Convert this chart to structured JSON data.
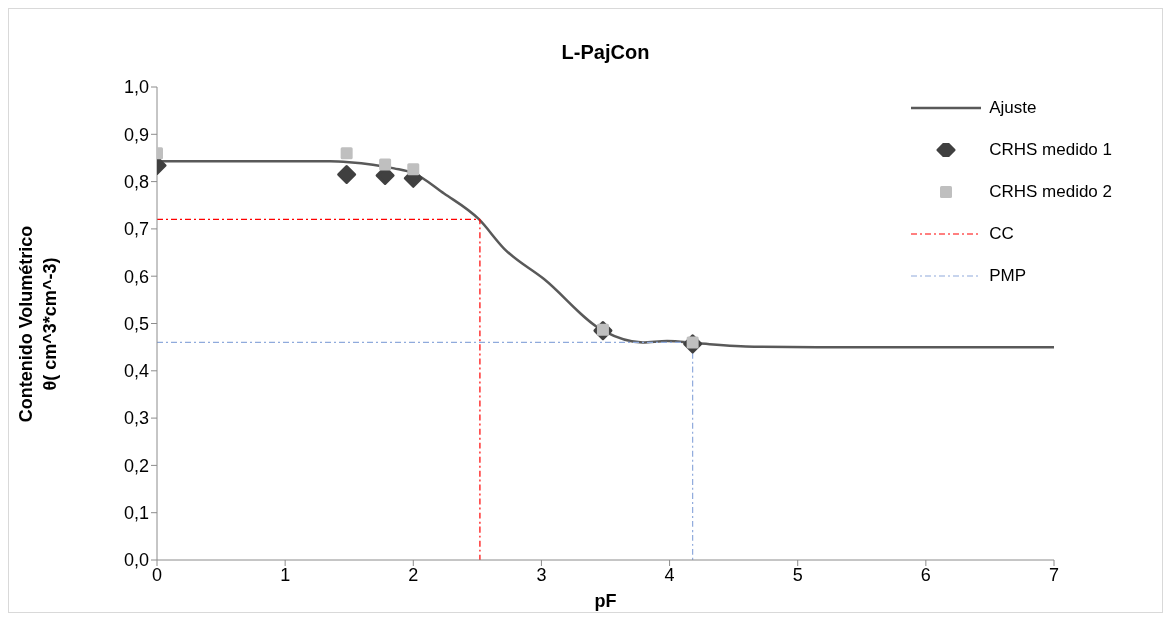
{
  "chart_data": {
    "type": "line",
    "title": "L-PajCon",
    "xlabel": "pF",
    "ylabel": "Contenido Volumétrico\nθ( cm^3*cm^-3)",
    "xlim": [
      0,
      7
    ],
    "xticks": [
      0,
      1,
      2,
      3,
      4,
      5,
      6,
      7
    ],
    "ylim": [
      0,
      1
    ],
    "yticks": [
      {
        "value": 0,
        "label": "0,0"
      },
      {
        "value": 0.1,
        "label": "0,1"
      },
      {
        "value": 0.2,
        "label": "0,2"
      },
      {
        "value": 0.3,
        "label": "0,3"
      },
      {
        "value": 0.4,
        "label": "0,4"
      },
      {
        "value": 0.5,
        "label": "0,5"
      },
      {
        "value": 0.6,
        "label": "0,6"
      },
      {
        "value": 0.7,
        "label": "0,7"
      },
      {
        "value": 0.8,
        "label": "0,8"
      },
      {
        "value": 0.9,
        "label": "0,9"
      },
      {
        "value": 1,
        "label": "1,0"
      }
    ],
    "grid": false,
    "legend": "top right",
    "series": [
      {
        "name": "Ajuste",
        "color": "#595959",
        "marker": "none",
        "line_style": "solid",
        "x": [
          0,
          1,
          1.35,
          1.5,
          1.85,
          2,
          2.24,
          2.51,
          2.71,
          3.02,
          3.48,
          3.79,
          3.98,
          4.22,
          4.66,
          5.15,
          6,
          7
        ],
        "values": [
          0.843,
          0.843,
          0.843,
          0.841,
          0.828,
          0.818,
          0.775,
          0.721,
          0.658,
          0.594,
          0.485,
          0.46,
          0.463,
          0.458,
          0.451,
          0.45,
          0.45,
          0.45
        ]
      },
      {
        "name": "CRHS medido 1",
        "type": "scatter",
        "color": "#404040",
        "marker": "diamond",
        "x": [
          0,
          1.48,
          1.78,
          2,
          3.48,
          4.18
        ],
        "values": [
          0.834,
          0.815,
          0.813,
          0.807,
          0.485,
          0.457
        ]
      },
      {
        "name": "CRHS medido 2",
        "type": "scatter",
        "color": "#bfbfbf",
        "marker": "square",
        "x": [
          0,
          1.48,
          1.78,
          2,
          3.48,
          4.18
        ],
        "values": [
          0.86,
          0.86,
          0.836,
          0.826,
          0.487,
          0.46
        ]
      },
      {
        "name": "CC",
        "color": "#ff0000",
        "marker": "none",
        "line_style": "dashed",
        "x": [
          0,
          2.52,
          2.52
        ],
        "values": [
          0.72,
          0.72,
          0
        ]
      },
      {
        "name": "PMP",
        "color": "#8faadc",
        "marker": "none",
        "line_style": "dashed",
        "x": [
          0,
          4.18,
          4.18
        ],
        "values": [
          0.46,
          0.46,
          0
        ]
      }
    ]
  }
}
